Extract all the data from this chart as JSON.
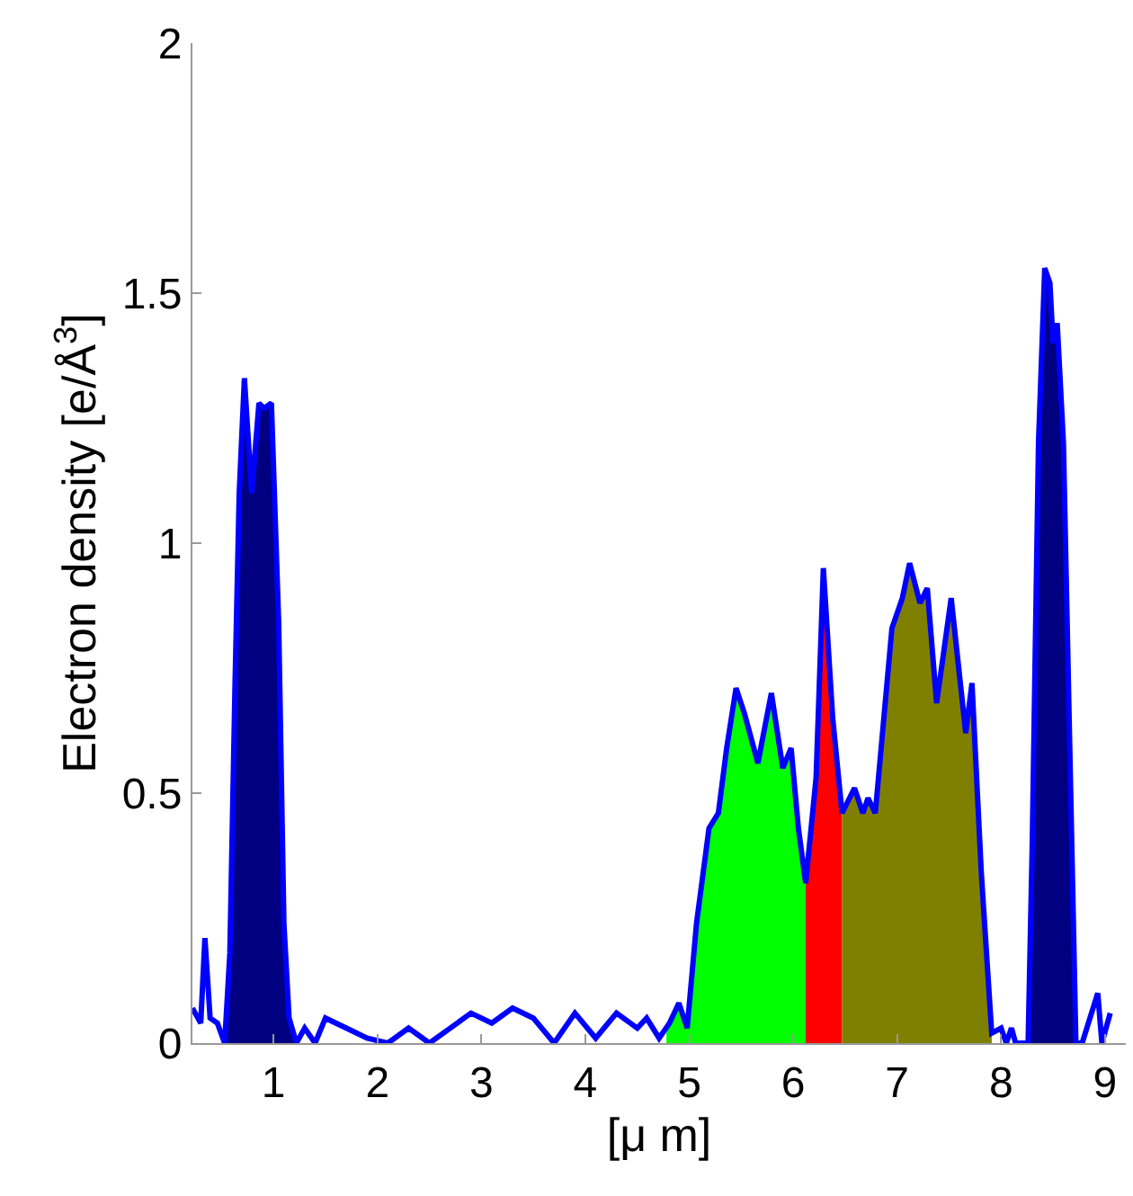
{
  "chart_data": {
    "type": "line",
    "xlabel": "[μ m]",
    "ylabel": "Electron density [e/Å$^{3}$]",
    "xlim": [
      0.22,
      9.2
    ],
    "ylim": [
      0,
      2
    ],
    "xticks": [
      1,
      2,
      3,
      4,
      5,
      6,
      7,
      8,
      9
    ],
    "yticks": [
      0,
      0.5,
      1,
      1.5,
      2
    ],
    "series": [
      {
        "type": "area",
        "color": "#000080",
        "x": [
          0.53,
          0.58,
          0.63,
          0.67,
          0.72,
          0.79,
          0.86,
          0.91,
          0.98,
          1.05,
          1.1,
          1.15,
          1.22
        ],
        "values": [
          0.0,
          0.18,
          0.72,
          1.1,
          1.33,
          1.1,
          1.28,
          1.27,
          1.28,
          0.84,
          0.24,
          0.05,
          0.0
        ]
      },
      {
        "type": "area",
        "color": "#00ff00",
        "x": [
          4.78,
          4.81,
          4.9,
          4.98,
          5.07,
          5.19,
          5.28,
          5.36,
          5.45,
          5.53,
          5.66,
          5.79,
          5.9,
          5.98,
          6.05,
          6.12
        ],
        "values": [
          0.02,
          0.04,
          0.08,
          0.03,
          0.24,
          0.43,
          0.46,
          0.59,
          0.71,
          0.66,
          0.56,
          0.7,
          0.55,
          0.59,
          0.43,
          0.32
        ]
      },
      {
        "type": "area",
        "color": "#ff0000",
        "x": [
          6.12,
          6.22,
          6.29,
          6.38,
          6.47
        ],
        "values": [
          0.32,
          0.53,
          0.95,
          0.65,
          0.46
        ]
      },
      {
        "type": "area",
        "color": "#808000",
        "x": [
          6.47,
          6.59,
          6.67,
          6.72,
          6.79,
          6.95,
          7.05,
          7.12,
          7.22,
          7.29,
          7.38,
          7.52,
          7.66,
          7.72,
          7.81,
          7.91
        ],
        "values": [
          0.46,
          0.51,
          0.46,
          0.49,
          0.46,
          0.83,
          0.89,
          0.96,
          0.88,
          0.91,
          0.68,
          0.89,
          0.62,
          0.72,
          0.34,
          0.02
        ]
      },
      {
        "type": "area",
        "color": "#000080",
        "x": [
          8.26,
          8.3,
          8.36,
          8.42,
          8.47,
          8.5,
          8.54,
          8.6,
          8.66,
          8.72
        ],
        "values": [
          0.0,
          0.4,
          1.2,
          1.55,
          1.52,
          1.4,
          1.44,
          1.2,
          0.6,
          0.0
        ]
      },
      {
        "color": "#0000ff",
        "x": [
          0.22,
          0.3,
          0.34,
          0.39,
          0.46,
          0.53,
          0.58,
          0.63,
          0.67,
          0.72,
          0.79,
          0.86,
          0.91,
          0.98,
          1.05,
          1.1,
          1.15,
          1.22,
          1.3,
          1.4,
          1.5,
          1.7,
          1.9,
          2.1,
          2.3,
          2.5,
          2.7,
          2.9,
          3.1,
          3.3,
          3.5,
          3.7,
          3.9,
          4.1,
          4.3,
          4.5,
          4.59,
          4.71,
          4.81,
          4.9,
          4.98,
          5.07,
          5.19,
          5.28,
          5.36,
          5.45,
          5.53,
          5.66,
          5.79,
          5.9,
          5.98,
          6.05,
          6.12,
          6.22,
          6.29,
          6.38,
          6.47,
          6.59,
          6.67,
          6.72,
          6.79,
          6.95,
          7.05,
          7.12,
          7.22,
          7.29,
          7.38,
          7.52,
          7.66,
          7.72,
          7.81,
          7.91,
          8.0,
          8.05,
          8.1,
          8.14,
          8.26,
          8.3,
          8.36,
          8.42,
          8.47,
          8.5,
          8.54,
          8.6,
          8.66,
          8.72,
          8.78,
          8.93,
          8.97,
          9.05
        ],
        "values": [
          0.07,
          0.04,
          0.21,
          0.05,
          0.04,
          0.0,
          0.18,
          0.72,
          1.1,
          1.33,
          1.1,
          1.28,
          1.27,
          1.28,
          0.84,
          0.24,
          0.05,
          0.0,
          0.03,
          0.0,
          0.05,
          0.03,
          0.01,
          0.0,
          0.03,
          0.0,
          0.03,
          0.06,
          0.04,
          0.07,
          0.05,
          0.0,
          0.06,
          0.01,
          0.06,
          0.03,
          0.05,
          0.01,
          0.04,
          0.08,
          0.03,
          0.24,
          0.43,
          0.46,
          0.59,
          0.71,
          0.66,
          0.56,
          0.7,
          0.55,
          0.59,
          0.43,
          0.32,
          0.53,
          0.95,
          0.65,
          0.46,
          0.51,
          0.46,
          0.49,
          0.46,
          0.83,
          0.89,
          0.96,
          0.88,
          0.91,
          0.68,
          0.89,
          0.62,
          0.72,
          0.34,
          0.02,
          0.03,
          0.0,
          0.03,
          0.0,
          0.0,
          0.4,
          1.2,
          1.55,
          1.52,
          1.4,
          1.44,
          1.2,
          0.6,
          0.0,
          0.0,
          0.1,
          0.0,
          0.06
        ]
      }
    ]
  }
}
